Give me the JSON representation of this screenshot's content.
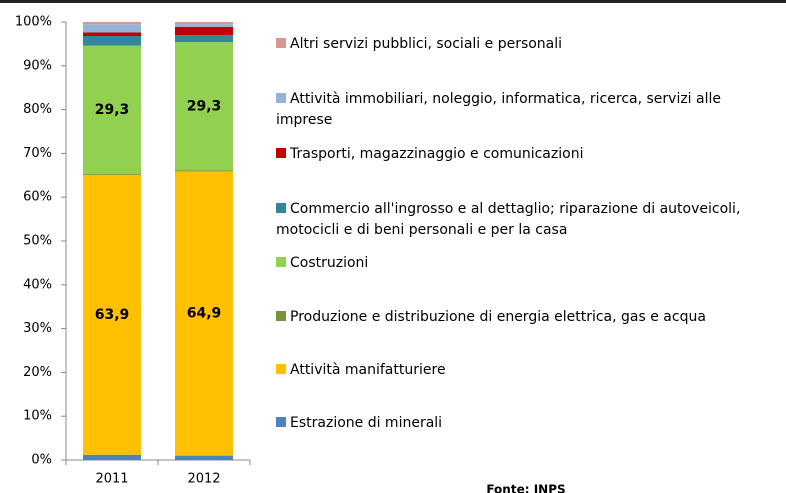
{
  "chart_data": {
    "type": "stacked-bar",
    "categories": [
      "2011",
      "2012"
    ],
    "series": [
      {
        "name": "Estrazione di minerali",
        "color": "#4f81bd",
        "values": [
          1.2,
          1.0
        ]
      },
      {
        "name": "Attività manifatturiere",
        "color": "#ffc000",
        "values": [
          63.9,
          64.9
        ],
        "value_labels": [
          "63,9",
          "64,9"
        ]
      },
      {
        "name": "Produzione e distribuzione di energia elettrica, gas e acqua",
        "color": "#77933c",
        "values": [
          0.2,
          0.2
        ]
      },
      {
        "name": "Costruzioni",
        "color": "#92d050",
        "values": [
          29.3,
          29.3
        ],
        "value_labels": [
          "29,3",
          "29,3"
        ]
      },
      {
        "name": "Commercio all'ingrosso e al dettaglio; riparazione di autoveicoli, motocicli e di beni personali e per la casa",
        "color": "#31859c",
        "values": [
          2.2,
          1.6
        ]
      },
      {
        "name": "Trasporti, magazzinaggio e comunicazioni",
        "color": "#c00000",
        "values": [
          0.8,
          1.9
        ]
      },
      {
        "name": "Attività immobiliari, noleggio, informatica, ricerca, servizi alle imprese",
        "color": "#95b3d7",
        "values": [
          1.9,
          0.6
        ]
      },
      {
        "name": "Altri servizi pubblici, sociali e personali",
        "color": "#d99694",
        "values": [
          0.5,
          0.5
        ]
      }
    ],
    "ylim": [
      0,
      100
    ],
    "yticks": [
      {
        "value": 0,
        "label": "0%"
      },
      {
        "value": 10,
        "label": "10%"
      },
      {
        "value": 20,
        "label": "20%"
      },
      {
        "value": 30,
        "label": "30%"
      },
      {
        "value": 40,
        "label": "40%"
      },
      {
        "value": 50,
        "label": "50%"
      },
      {
        "value": 60,
        "label": "60%"
      },
      {
        "value": 70,
        "label": "70%"
      },
      {
        "value": 80,
        "label": "80%"
      },
      {
        "value": 90,
        "label": "90%"
      },
      {
        "value": 100,
        "label": "100%"
      }
    ],
    "legend": "right",
    "source": "Fonte: INPS"
  }
}
